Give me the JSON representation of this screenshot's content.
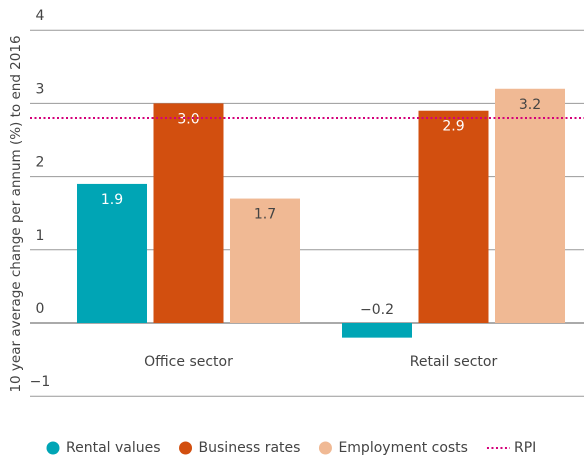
{
  "chart_data": {
    "type": "bar",
    "y_label": "10 year average change per annum (%) to end 2016",
    "categories": [
      "Office sector",
      "Retail sector"
    ],
    "series": [
      {
        "name": "Rental values",
        "color": "#00a5b5",
        "values": [
          1.9,
          -0.2
        ],
        "value_labels": [
          "1.9",
          "−0.2"
        ]
      },
      {
        "name": "Business rates",
        "color": "#d24f0f",
        "values": [
          3.0,
          2.9
        ],
        "value_labels": [
          "3.0",
          "2.9"
        ]
      },
      {
        "name": "Employment costs",
        "color": "#f0b994",
        "values": [
          1.7,
          3.2
        ],
        "value_labels": [
          "1.7",
          "3.2"
        ]
      }
    ],
    "reference_line": {
      "name": "RPI",
      "value": 2.8,
      "color": "#d4007a"
    },
    "ylim": [
      -1.3,
      4
    ],
    "yticks": [
      {
        "value": -1,
        "label": "−1"
      },
      0,
      1,
      2,
      3,
      4
    ],
    "grid": true,
    "legend": "bottom"
  }
}
